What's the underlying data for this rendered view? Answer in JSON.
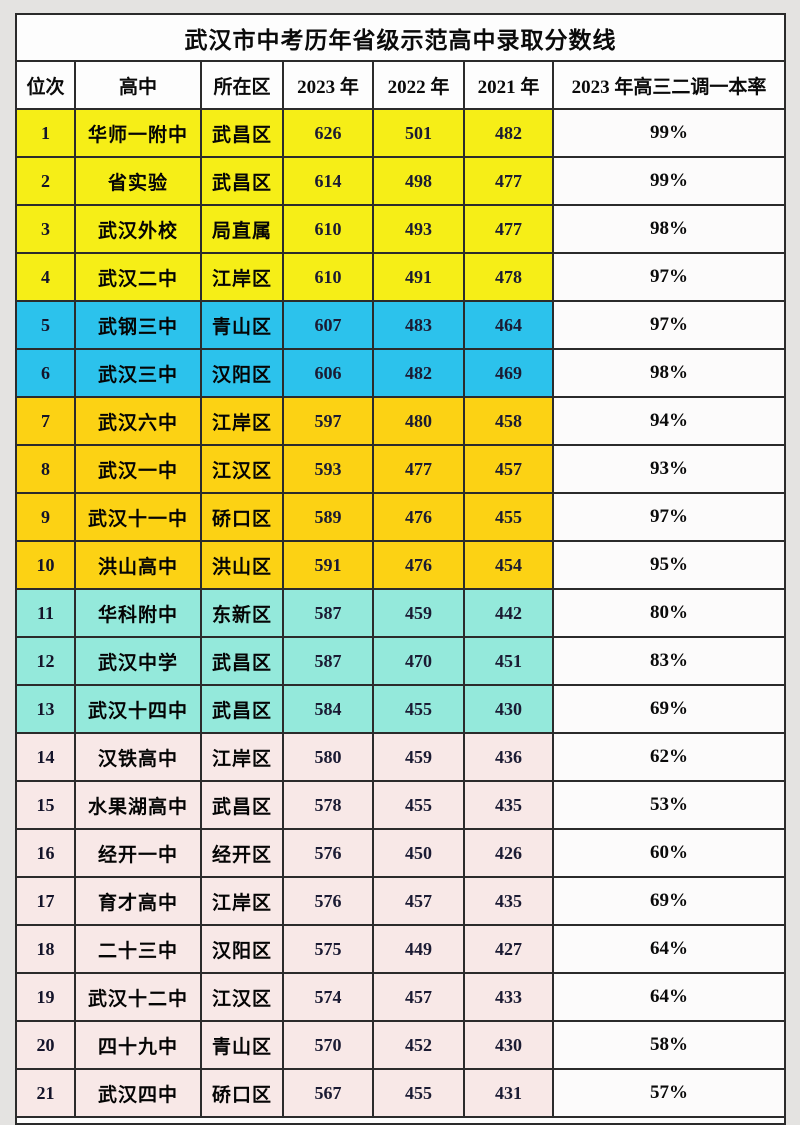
{
  "chart_data": {
    "type": "table",
    "title": "武汉市中考历年省级示范高中录取分数线",
    "columns": [
      "位次",
      "高中",
      "所在区",
      "2023 年",
      "2022 年",
      "2021 年",
      "2023 年高三二调一本率"
    ],
    "rows": [
      {
        "rank": "1",
        "school": "华师一附中",
        "district": "武昌区",
        "y2023": "626",
        "y2022": "501",
        "y2021": "482",
        "rate": "99%",
        "group": "yellow"
      },
      {
        "rank": "2",
        "school": "省实验",
        "district": "武昌区",
        "y2023": "614",
        "y2022": "498",
        "y2021": "477",
        "rate": "99%",
        "group": "yellow"
      },
      {
        "rank": "3",
        "school": "武汉外校",
        "district": "局直属",
        "y2023": "610",
        "y2022": "493",
        "y2021": "477",
        "rate": "98%",
        "group": "yellow"
      },
      {
        "rank": "4",
        "school": "武汉二中",
        "district": "江岸区",
        "y2023": "610",
        "y2022": "491",
        "y2021": "478",
        "rate": "97%",
        "group": "yellow"
      },
      {
        "rank": "5",
        "school": "武钢三中",
        "district": "青山区",
        "y2023": "607",
        "y2022": "483",
        "y2021": "464",
        "rate": "97%",
        "group": "cyan"
      },
      {
        "rank": "6",
        "school": "武汉三中",
        "district": "汉阳区",
        "y2023": "606",
        "y2022": "482",
        "y2021": "469",
        "rate": "98%",
        "group": "cyan"
      },
      {
        "rank": "7",
        "school": "武汉六中",
        "district": "江岸区",
        "y2023": "597",
        "y2022": "480",
        "y2021": "458",
        "rate": "94%",
        "group": "gold"
      },
      {
        "rank": "8",
        "school": "武汉一中",
        "district": "江汉区",
        "y2023": "593",
        "y2022": "477",
        "y2021": "457",
        "rate": "93%",
        "group": "gold"
      },
      {
        "rank": "9",
        "school": "武汉十一中",
        "district": "硚口区",
        "y2023": "589",
        "y2022": "476",
        "y2021": "455",
        "rate": "97%",
        "group": "gold"
      },
      {
        "rank": "10",
        "school": "洪山高中",
        "district": "洪山区",
        "y2023": "591",
        "y2022": "476",
        "y2021": "454",
        "rate": "95%",
        "group": "gold"
      },
      {
        "rank": "11",
        "school": "华科附中",
        "district": "东新区",
        "y2023": "587",
        "y2022": "459",
        "y2021": "442",
        "rate": "80%",
        "group": "mint"
      },
      {
        "rank": "12",
        "school": "武汉中学",
        "district": "武昌区",
        "y2023": "587",
        "y2022": "470",
        "y2021": "451",
        "rate": "83%",
        "group": "mint"
      },
      {
        "rank": "13",
        "school": "武汉十四中",
        "district": "武昌区",
        "y2023": "584",
        "y2022": "455",
        "y2021": "430",
        "rate": "69%",
        "group": "mint"
      },
      {
        "rank": "14",
        "school": "汉铁高中",
        "district": "江岸区",
        "y2023": "580",
        "y2022": "459",
        "y2021": "436",
        "rate": "62%",
        "group": "pink"
      },
      {
        "rank": "15",
        "school": "水果湖高中",
        "district": "武昌区",
        "y2023": "578",
        "y2022": "455",
        "y2021": "435",
        "rate": "53%",
        "group": "pink"
      },
      {
        "rank": "16",
        "school": "经开一中",
        "district": "经开区",
        "y2023": "576",
        "y2022": "450",
        "y2021": "426",
        "rate": "60%",
        "group": "pink"
      },
      {
        "rank": "17",
        "school": "育才高中",
        "district": "江岸区",
        "y2023": "576",
        "y2022": "457",
        "y2021": "435",
        "rate": "69%",
        "group": "pink"
      },
      {
        "rank": "18",
        "school": "二十三中",
        "district": "汉阳区",
        "y2023": "575",
        "y2022": "449",
        "y2021": "427",
        "rate": "64%",
        "group": "pink"
      },
      {
        "rank": "19",
        "school": "武汉十二中",
        "district": "江汉区",
        "y2023": "574",
        "y2022": "457",
        "y2021": "433",
        "rate": "64%",
        "group": "pink"
      },
      {
        "rank": "20",
        "school": "四十九中",
        "district": "青山区",
        "y2023": "570",
        "y2022": "452",
        "y2021": "430",
        "rate": "58%",
        "group": "pink"
      },
      {
        "rank": "21",
        "school": "武汉四中",
        "district": "硚口区",
        "y2023": "567",
        "y2022": "455",
        "y2021": "431",
        "rate": "57%",
        "group": "pink"
      }
    ]
  },
  "colors": {
    "yellow": "#f6ee17",
    "cyan": "#2cc2ec",
    "gold": "#fcd214",
    "mint": "#94e9db",
    "pink": "#f8e8e7",
    "rate_bg": "#fcfbfb"
  }
}
